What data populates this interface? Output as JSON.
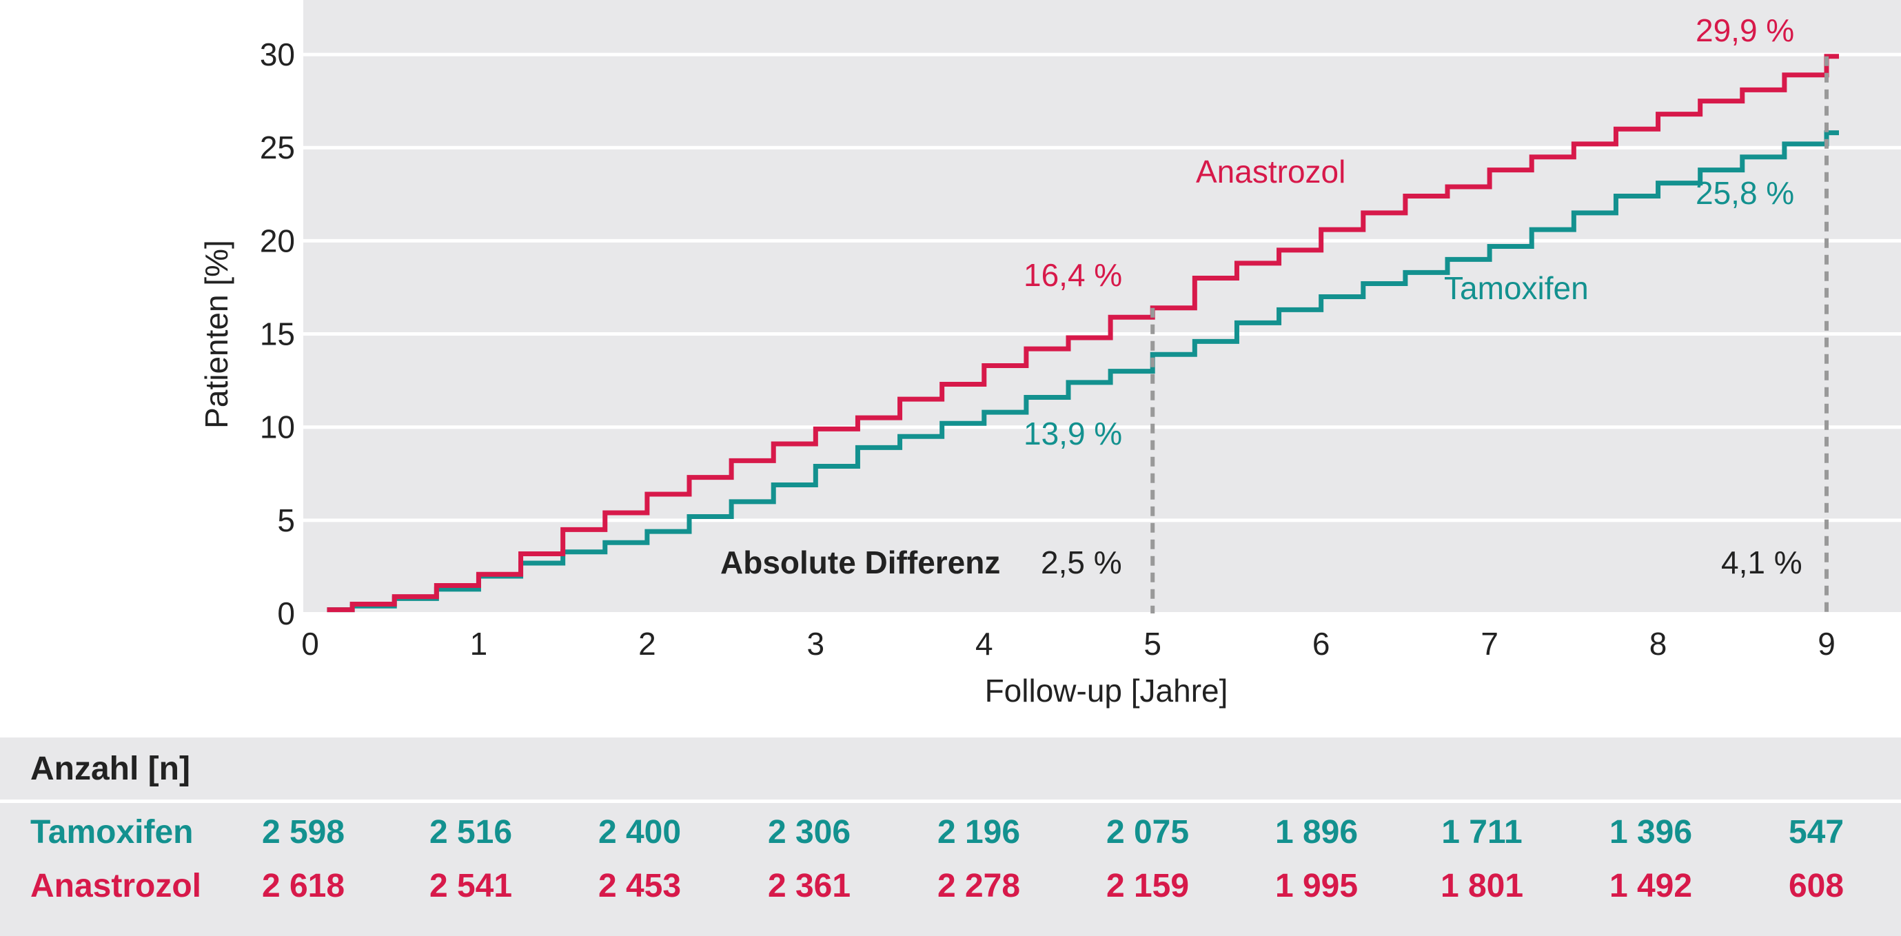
{
  "chart_data": {
    "type": "line",
    "xlabel": "Follow-up [Jahre]",
    "ylabel": "Patienten [%]",
    "xlim": [
      0,
      9
    ],
    "ylim": [
      0,
      32
    ],
    "x_ticks": [
      0,
      1,
      2,
      3,
      4,
      5,
      6,
      7,
      8,
      9
    ],
    "y_ticks": [
      0,
      5,
      10,
      15,
      20,
      25,
      30
    ],
    "grid": true,
    "step": true,
    "colors": {
      "anastrozol": "#d7194a",
      "tamoxifen": "#13918f",
      "background": "#e8e8ea",
      "marker_line": "#999999"
    },
    "series": [
      {
        "name": "Anastrozol",
        "x": [
          0.1,
          0.25,
          0.5,
          0.75,
          1.0,
          1.25,
          1.5,
          1.75,
          2.0,
          2.25,
          2.5,
          2.75,
          3.0,
          3.25,
          3.5,
          3.75,
          4.0,
          4.25,
          4.5,
          4.75,
          5.0,
          5.25,
          5.5,
          5.75,
          6.0,
          6.25,
          6.5,
          6.75,
          7.0,
          7.25,
          7.5,
          7.75,
          8.0,
          8.25,
          8.5,
          8.75,
          9.0
        ],
        "y": [
          0.2,
          0.5,
          0.9,
          1.5,
          2.1,
          3.2,
          4.5,
          5.4,
          6.4,
          7.3,
          8.2,
          9.1,
          9.9,
          10.5,
          11.5,
          12.3,
          13.3,
          14.2,
          14.8,
          15.9,
          16.4,
          18.0,
          18.8,
          19.5,
          20.6,
          21.5,
          22.4,
          22.9,
          23.8,
          24.5,
          25.2,
          26.0,
          26.8,
          27.5,
          28.1,
          28.9,
          29.9
        ]
      },
      {
        "name": "Tamoxifen",
        "x": [
          0.1,
          0.25,
          0.5,
          0.75,
          1.0,
          1.25,
          1.5,
          1.75,
          2.0,
          2.25,
          2.5,
          2.75,
          3.0,
          3.25,
          3.5,
          3.75,
          4.0,
          4.25,
          4.5,
          4.75,
          5.0,
          5.25,
          5.5,
          5.75,
          6.0,
          6.25,
          6.5,
          6.75,
          7.0,
          7.25,
          7.5,
          7.75,
          8.0,
          8.25,
          8.5,
          8.75,
          9.0
        ],
        "y": [
          0.2,
          0.4,
          0.8,
          1.3,
          2.0,
          2.7,
          3.3,
          3.8,
          4.4,
          5.2,
          6.0,
          6.9,
          7.9,
          8.9,
          9.5,
          10.2,
          10.8,
          11.6,
          12.4,
          13.0,
          13.9,
          14.6,
          15.6,
          16.3,
          17.0,
          17.7,
          18.3,
          19.0,
          19.7,
          20.6,
          21.5,
          22.4,
          23.1,
          23.8,
          24.5,
          25.2,
          25.8
        ]
      }
    ],
    "labels": {
      "anastrozol": "Anastrozol",
      "tamoxifen": "Tamoxifen",
      "ana_5": "16,4 %",
      "tam_5": "13,9 %",
      "ana_9": "29,9 %",
      "tam_9": "25,8 %",
      "diff_prefix": "Absolute Differenz",
      "diff_5": "2,5 %",
      "diff_9": "4,1 %"
    }
  },
  "risk_table": {
    "header": "Anzahl [n]",
    "rows": [
      {
        "label": "Tamoxifen",
        "color": "#13918f",
        "values": [
          "2 598",
          "2 516",
          "2 400",
          "2 306",
          "2 196",
          "2 075",
          "1 896",
          "1 711",
          "1 396",
          "547"
        ]
      },
      {
        "label": "Anastrozol",
        "color": "#d7194a",
        "values": [
          "2 618",
          "2 541",
          "2 453",
          "2 361",
          "2 278",
          "2 159",
          "1 995",
          "1 801",
          "1 492",
          "608"
        ]
      }
    ]
  }
}
